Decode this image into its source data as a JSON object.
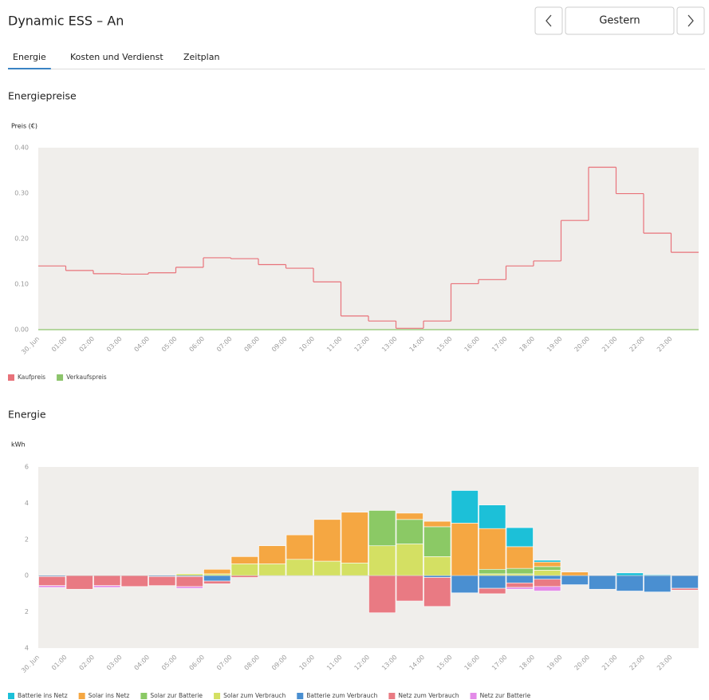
{
  "header": {
    "title": "Dynamic ESS – An",
    "date_button": "Gestern"
  },
  "tabs": [
    "Energie",
    "Kosten und Verdienst",
    "Zeitplan"
  ],
  "active_tab": 0,
  "chart_data": [
    {
      "type": "line",
      "step": true,
      "title": "Energiepreise",
      "y_label": "Preis (€)",
      "categories": [
        "30. Jun",
        "01:00",
        "02:00",
        "03:00",
        "04:00",
        "05:00",
        "06:00",
        "07:00",
        "08:00",
        "09:00",
        "10:00",
        "11:00",
        "12:00",
        "13:00",
        "14:00",
        "15:00",
        "16:00",
        "17:00",
        "18:00",
        "19:00",
        "20:00",
        "21:00",
        "22:00",
        "23:00"
      ],
      "series": [
        {
          "name": "Kaufpreis",
          "color": "#e8727a",
          "values": [
            0.14,
            0.13,
            0.123,
            0.122,
            0.125,
            0.137,
            0.158,
            0.156,
            0.143,
            0.135,
            0.105,
            0.03,
            0.019,
            0.003,
            0.019,
            0.101,
            0.11,
            0.14,
            0.151,
            0.24,
            0.357,
            0.299,
            0.212,
            0.17
          ]
        },
        {
          "name": "Verkaufspreis",
          "color": "#8cc46b",
          "values": [
            0,
            0,
            0,
            0,
            0,
            0,
            0,
            0,
            0,
            0,
            0,
            0,
            0,
            0,
            0,
            0,
            0,
            0,
            0,
            0,
            0,
            0,
            0,
            0
          ]
        }
      ],
      "ylim": [
        0,
        0.4
      ],
      "yticks": [
        {
          "value": 0,
          "label": "0.00"
        },
        {
          "value": 0.1,
          "label": "0.10"
        },
        {
          "value": 0.2,
          "label": "0.20"
        },
        {
          "value": 0.3,
          "label": "0.30"
        },
        {
          "value": 0.4,
          "label": "0.40"
        }
      ]
    },
    {
      "type": "bar",
      "stacked": true,
      "title": "Energie",
      "y_label": "kWh",
      "categories": [
        "30. Jun",
        "01:00",
        "02:00",
        "03:00",
        "04:00",
        "05:00",
        "06:00",
        "07:00",
        "08:00",
        "09:00",
        "10:00",
        "11:00",
        "12:00",
        "13:00",
        "14:00",
        "15:00",
        "16:00",
        "17:00",
        "18:00",
        "19:00",
        "20:00",
        "21:00",
        "22:00",
        "23:00"
      ],
      "series": [
        {
          "name": "Batterie ins Netz",
          "color": "#1cc0d8",
          "values": [
            0,
            0,
            0,
            0,
            0,
            0,
            0,
            0,
            0,
            0,
            0,
            0,
            0,
            0,
            0,
            1.8,
            1.3,
            1.05,
            0.1,
            0,
            0,
            0.15,
            0.05,
            0
          ]
        },
        {
          "name": "Solar ins Netz",
          "color": "#f5a742",
          "values": [
            0,
            0,
            0,
            0,
            0,
            0,
            0.25,
            0.4,
            1.0,
            1.35,
            2.3,
            2.8,
            0,
            0.35,
            0.3,
            2.9,
            2.25,
            1.2,
            0.25,
            0.2,
            0,
            0,
            0,
            0
          ]
        },
        {
          "name": "Solar zur Batterie",
          "color": "#8bc965",
          "values": [
            0,
            0,
            0,
            0,
            0,
            0,
            0,
            0,
            0,
            0,
            0,
            0,
            1.95,
            1.35,
            1.65,
            0,
            0.25,
            0.3,
            0.2,
            0,
            0,
            0,
            0,
            0
          ]
        },
        {
          "name": "Solar zum Verbrauch",
          "color": "#d4e063",
          "values": [
            0,
            0,
            0,
            0,
            0,
            0.1,
            0.1,
            0.65,
            0.65,
            0.9,
            0.8,
            0.7,
            1.65,
            1.75,
            1.05,
            0,
            0.1,
            0.1,
            0.3,
            0,
            0,
            0,
            0,
            0
          ]
        },
        {
          "name": "Batterie zum Verbrauch",
          "color": "#4a8fd1",
          "values": [
            -0.05,
            0,
            0,
            0,
            -0.05,
            -0.05,
            -0.3,
            0,
            0,
            0,
            0,
            0,
            0,
            0,
            -0.1,
            -0.95,
            -0.7,
            -0.4,
            -0.2,
            -0.5,
            -0.75,
            -0.85,
            -0.9,
            -0.7
          ]
        },
        {
          "name": "Netz zum Verbrauch",
          "color": "#e97a83",
          "values": [
            -0.5,
            -0.75,
            -0.55,
            -0.6,
            -0.5,
            -0.55,
            -0.15,
            -0.1,
            0,
            0,
            0,
            0,
            -2.05,
            -1.4,
            -1.6,
            0,
            -0.3,
            -0.25,
            -0.4,
            0,
            0,
            0,
            0,
            -0.1
          ]
        },
        {
          "name": "Netz zur Batterie",
          "color": "#e38be8",
          "values": [
            -0.1,
            0,
            -0.1,
            0,
            0,
            -0.1,
            0,
            0,
            0,
            0,
            0,
            0,
            0,
            0,
            0,
            0,
            0,
            -0.1,
            -0.25,
            0,
            0,
            0,
            0,
            0
          ]
        }
      ],
      "ylim": [
        -4,
        6
      ],
      "yticks": [
        {
          "value": -4,
          "label": "4"
        },
        {
          "value": -2,
          "label": "2"
        },
        0,
        2,
        4,
        6
      ]
    }
  ]
}
